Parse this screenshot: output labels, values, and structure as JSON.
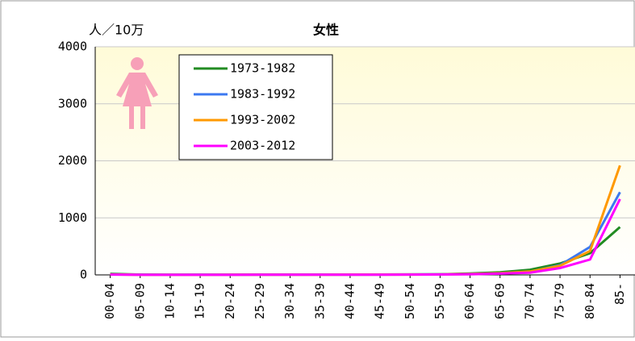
{
  "chart_data": {
    "type": "line",
    "title": "女性",
    "y_label": "人／10万",
    "categories": [
      "00-04",
      "05-09",
      "10-14",
      "15-19",
      "20-24",
      "25-29",
      "30-34",
      "35-39",
      "40-44",
      "45-49",
      "50-54",
      "55-59",
      "60-64",
      "65-69",
      "70-74",
      "75-79",
      "80-84",
      "85-"
    ],
    "series": [
      {
        "name": "1973-1982",
        "color": "#228b22",
        "values": [
          20,
          5,
          3,
          3,
          4,
          5,
          5,
          6,
          6,
          7,
          8,
          12,
          25,
          45,
          90,
          200,
          380,
          840
        ]
      },
      {
        "name": "1983-1992",
        "color": "#3c78f0",
        "values": [
          10,
          3,
          2,
          3,
          3,
          4,
          4,
          5,
          5,
          6,
          7,
          10,
          18,
          28,
          55,
          170,
          490,
          1450
        ]
      },
      {
        "name": "1993-2002",
        "color": "#ff9900",
        "values": [
          8,
          2,
          2,
          2,
          3,
          3,
          4,
          4,
          5,
          5,
          6,
          8,
          15,
          30,
          60,
          160,
          420,
          1920
        ]
      },
      {
        "name": "2003-2012",
        "color": "#ff00ff",
        "values": [
          6,
          2,
          1,
          2,
          2,
          3,
          3,
          4,
          4,
          4,
          5,
          7,
          12,
          22,
          40,
          120,
          270,
          1330
        ]
      }
    ],
    "ylim": [
      0,
      4000
    ],
    "yticks": [
      0,
      1000,
      2000,
      3000,
      4000
    ],
    "grid": true
  }
}
